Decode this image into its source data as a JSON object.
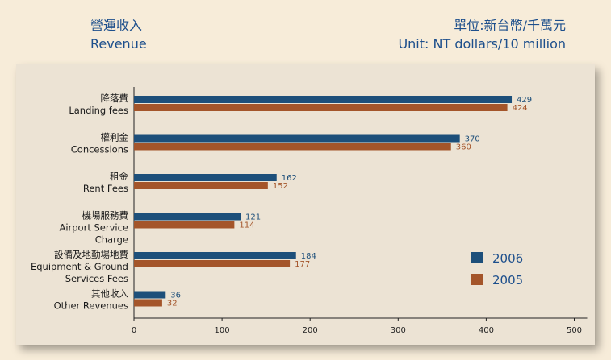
{
  "header": {
    "title_zh": "營運收入",
    "title_en": "Revenue",
    "unit_zh": "單位:新台幣/千萬元",
    "unit_en": "Unit: NT dollars/10 million"
  },
  "colors": {
    "series_2006": "#1d4f7a",
    "series_2005": "#a4552a",
    "text": "#1d4f8c"
  },
  "chart_data": {
    "type": "bar",
    "orientation": "horizontal",
    "categories": [
      [
        "降落費",
        "Landing fees"
      ],
      [
        "權利金",
        "Concessions"
      ],
      [
        "租金",
        "Rent Fees"
      ],
      [
        "機場服務費",
        "Airport Service",
        "Charge"
      ],
      [
        "設備及地勤場地費",
        "Equipment & Ground",
        "Services Fees"
      ],
      [
        "其他收入",
        "Other Revenues"
      ]
    ],
    "series": [
      {
        "name": "2006",
        "values": [
          429,
          370,
          162,
          121,
          184,
          36
        ]
      },
      {
        "name": "2005",
        "values": [
          424,
          360,
          152,
          114,
          177,
          32
        ]
      }
    ],
    "xlim": [
      0,
      500
    ],
    "xticks": [
      "0",
      "100",
      "200",
      "300",
      "400",
      "500"
    ],
    "legend": "bottom-right",
    "grid": false
  }
}
